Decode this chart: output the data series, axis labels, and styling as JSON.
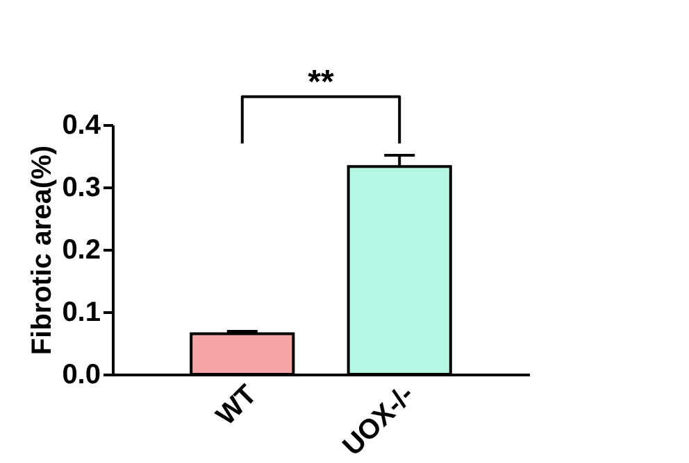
{
  "chart_data": {
    "type": "bar",
    "ylabel": "Fibrotic area(%)",
    "categories": [
      "WT",
      "UOX-/-"
    ],
    "values": [
      0.065,
      0.333
    ],
    "errors": [
      0.004,
      0.018
    ],
    "colors": [
      "#f8a5a5",
      "#b5f7e2"
    ],
    "ylim": [
      0,
      0.4
    ],
    "yticks": [
      {
        "value": 0,
        "label": "0.0"
      },
      0.1,
      0.2,
      0.3,
      0.4
    ],
    "grid": false,
    "annotations": [
      "**"
    ]
  }
}
